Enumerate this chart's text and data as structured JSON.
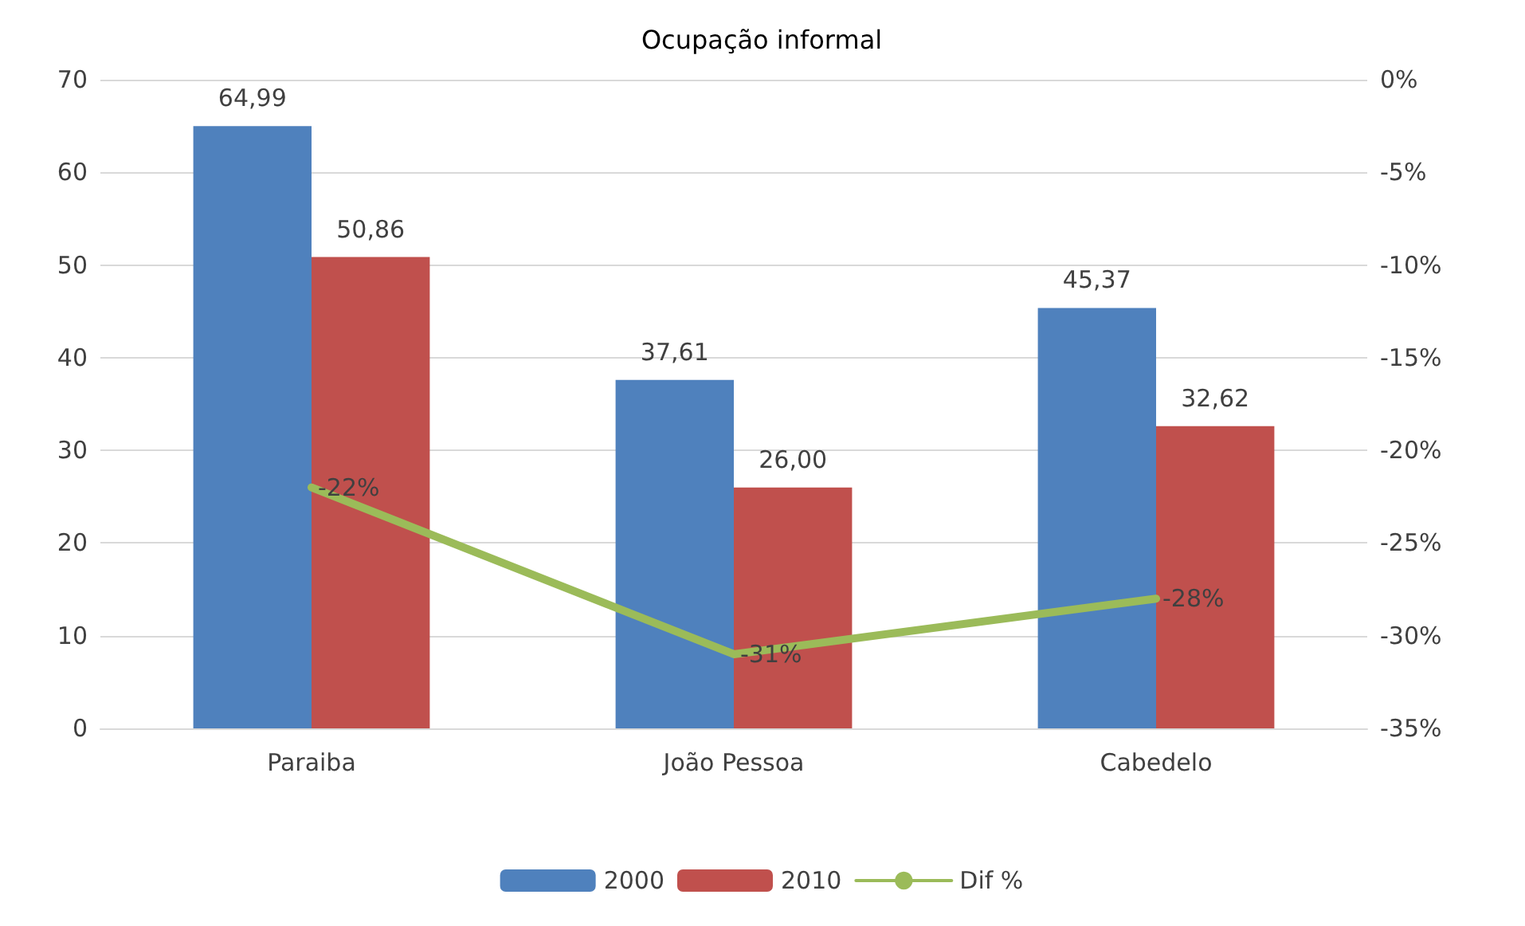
{
  "chart_data": {
    "type": "bar",
    "title": "Ocupação informal",
    "categories": [
      "Paraiba",
      "João Pessoa",
      "Cabedelo"
    ],
    "series": [
      {
        "name": "2000",
        "color": "#4f81bd",
        "values": [
          64.99,
          37.61,
          45.37
        ],
        "value_labels": [
          "64,99",
          "37,61",
          "45,37"
        ]
      },
      {
        "name": "2010",
        "color": "#c0504d",
        "values": [
          50.86,
          26.0,
          32.62
        ],
        "value_labels": [
          "50,86",
          "26,00",
          "32,62"
        ]
      },
      {
        "name": "Dif %",
        "type": "line",
        "axis": "y2",
        "color": "#9bbb59",
        "values": [
          -22,
          -31,
          -28
        ],
        "value_labels": [
          "-22%",
          "-31%",
          "-28%"
        ],
        "marker": "none",
        "line_style": "solid"
      }
    ],
    "ylim": [
      0,
      70
    ],
    "yticks": [
      0,
      10,
      20,
      30,
      40,
      50,
      60,
      70
    ],
    "y2lim": [
      -35,
      0
    ],
    "y2ticks": [
      {
        "value": -35,
        "label": "-35%"
      },
      {
        "value": -30,
        "label": "-30%"
      },
      {
        "value": -25,
        "label": "-25%"
      },
      {
        "value": -20,
        "label": "-20%"
      },
      {
        "value": -15,
        "label": "-15%"
      },
      {
        "value": -10,
        "label": "-10%"
      },
      {
        "value": -5,
        "label": "-5%"
      },
      {
        "value": 0,
        "label": "0%"
      }
    ],
    "grid": "y",
    "legend": "bottom"
  }
}
